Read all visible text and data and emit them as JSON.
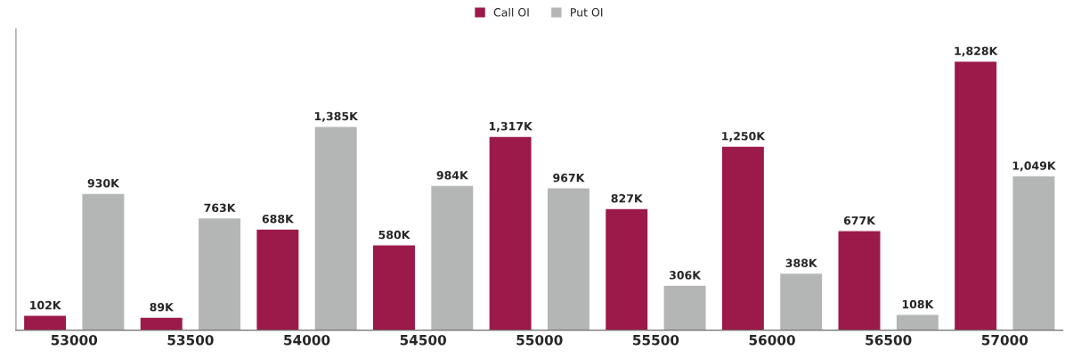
{
  "chart_data": {
    "type": "bar",
    "categories": [
      "53000",
      "53500",
      "54000",
      "54500",
      "55000",
      "55500",
      "56000",
      "56500",
      "57000"
    ],
    "series": [
      {
        "name": "Call OI",
        "color": "#9b1a4a",
        "values": [
          102,
          89,
          688,
          580,
          1317,
          827,
          1250,
          677,
          1828
        ],
        "value_labels": [
          "102K",
          "89K",
          "688K",
          "580K",
          "1,317K",
          "827K",
          "1,250K",
          "677K",
          "1,828K"
        ]
      },
      {
        "name": "Put OI",
        "color": "#b4b5b5",
        "values": [
          930,
          763,
          1385,
          984,
          967,
          306,
          388,
          108,
          1049
        ],
        "value_labels": [
          "930K",
          "763K",
          "1,385K",
          "984K",
          "967K",
          "306K",
          "388K",
          "108K",
          "1,049K"
        ]
      }
    ],
    "legend": "top",
    "tick_labels": "x"
  }
}
